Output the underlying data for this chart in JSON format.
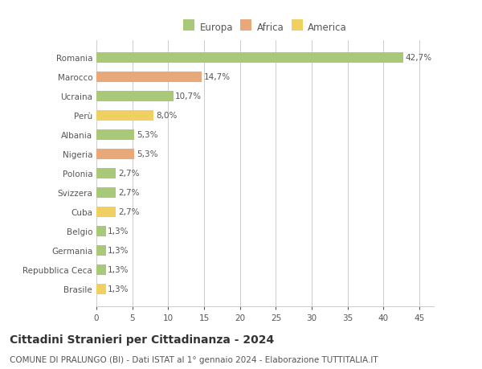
{
  "countries": [
    "Romania",
    "Marocco",
    "Ucraina",
    "Perù",
    "Albania",
    "Nigeria",
    "Polonia",
    "Svizzera",
    "Cuba",
    "Belgio",
    "Germania",
    "Repubblica Ceca",
    "Brasile"
  ],
  "values": [
    42.7,
    14.7,
    10.7,
    8.0,
    5.3,
    5.3,
    2.7,
    2.7,
    2.7,
    1.3,
    1.3,
    1.3,
    1.3
  ],
  "labels": [
    "42,7%",
    "14,7%",
    "10,7%",
    "8,0%",
    "5,3%",
    "5,3%",
    "2,7%",
    "2,7%",
    "2,7%",
    "1,3%",
    "1,3%",
    "1,3%",
    "1,3%"
  ],
  "categories": [
    "Europa",
    "Africa",
    "America"
  ],
  "bar_colors": [
    "#a8c97a",
    "#e8a87a",
    "#a8c97a",
    "#f0d060",
    "#a8c97a",
    "#e8a87a",
    "#a8c97a",
    "#a8c97a",
    "#f0d060",
    "#a8c97a",
    "#a8c97a",
    "#a8c97a",
    "#f0d060"
  ],
  "legend_colors": [
    "#a8c97a",
    "#e8a87a",
    "#f0d060"
  ],
  "xlim": [
    0,
    47
  ],
  "xticks": [
    0,
    5,
    10,
    15,
    20,
    25,
    30,
    35,
    40,
    45
  ],
  "title": "Cittadini Stranieri per Cittadinanza - 2024",
  "subtitle": "COMUNE DI PRALUNGO (BI) - Dati ISTAT al 1° gennaio 2024 - Elaborazione TUTTITALIA.IT",
  "bg_color": "#ffffff",
  "grid_color": "#cccccc",
  "bar_height": 0.55,
  "label_fontsize": 7.5,
  "tick_fontsize": 7.5,
  "title_fontsize": 10,
  "subtitle_fontsize": 7.5,
  "legend_fontsize": 8.5,
  "text_color": "#555555",
  "title_color": "#333333"
}
